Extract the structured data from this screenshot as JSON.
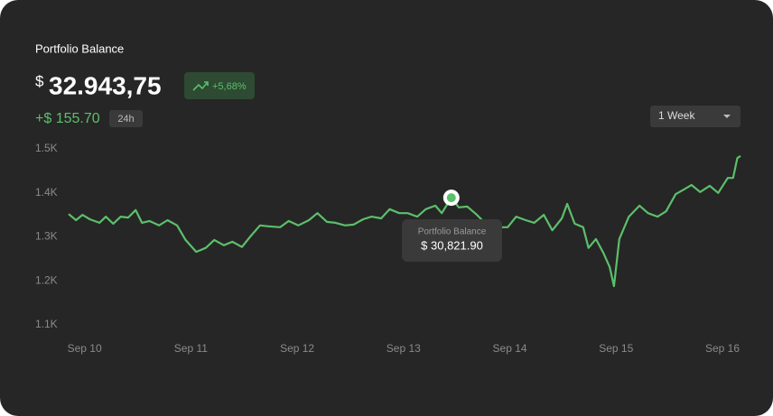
{
  "header": {
    "title": "Portfolio Balance",
    "currency": "$",
    "balance": "32.943,75",
    "change_pct": "+5,68%",
    "change_abs": "+$ 155.70",
    "period_badge": "24h",
    "range_select": "1 Week"
  },
  "chart_data": {
    "type": "line",
    "x": [
      -0.15,
      -0.08,
      -0.02,
      0.05,
      0.14,
      0.2,
      0.27,
      0.34,
      0.41,
      0.48,
      0.54,
      0.61,
      0.7,
      0.78,
      0.87,
      0.95,
      1.05,
      1.14,
      1.22,
      1.31,
      1.39,
      1.48,
      1.56,
      1.65,
      1.73,
      1.84,
      1.92,
      2.01,
      2.11,
      2.19,
      2.28,
      2.36,
      2.45,
      2.53,
      2.62,
      2.7,
      2.79,
      2.87,
      2.96,
      3.04,
      3.13,
      3.21,
      3.3,
      3.36,
      3.45,
      3.52,
      3.6,
      3.69,
      3.79,
      3.89,
      3.98,
      4.06,
      4.15,
      4.23,
      4.32,
      4.4,
      4.49,
      4.54,
      4.61,
      4.69,
      4.74,
      4.81,
      4.88,
      4.94,
      4.98,
      5.03,
      5.12,
      5.22,
      5.3,
      5.39,
      5.47,
      5.56,
      5.64,
      5.71,
      5.79,
      5.88,
      5.96,
      6.05,
      6.1,
      6.14,
      6.17
    ],
    "series": [
      {
        "name": "Portfolio Balance",
        "color": "#5cbf6b",
        "values": [
          1352,
          1338,
          1350,
          1340,
          1332,
          1346,
          1330,
          1346,
          1344,
          1361,
          1332,
          1336,
          1326,
          1338,
          1326,
          1293,
          1266,
          1275,
          1293,
          1281,
          1289,
          1277,
          1301,
          1326,
          1324,
          1322,
          1336,
          1326,
          1338,
          1354,
          1334,
          1332,
          1326,
          1328,
          1340,
          1346,
          1342,
          1363,
          1354,
          1354,
          1346,
          1363,
          1371,
          1354,
          1389,
          1367,
          1369,
          1350,
          1326,
          1322,
          1322,
          1346,
          1338,
          1332,
          1350,
          1315,
          1342,
          1375,
          1330,
          1322,
          1275,
          1295,
          1264,
          1231,
          1188,
          1295,
          1346,
          1371,
          1354,
          1346,
          1358,
          1397,
          1408,
          1418,
          1402,
          1416,
          1400,
          1434,
          1434,
          1479,
          1484
        ]
      }
    ],
    "xlim": [
      -0.15,
      6.17
    ],
    "xticks": [
      {
        "value": 0,
        "label": "Sep 10"
      },
      {
        "value": 1,
        "label": "Sep 11"
      },
      {
        "value": 2,
        "label": "Sep 12"
      },
      {
        "value": 3,
        "label": "Sep 13"
      },
      {
        "value": 4,
        "label": "Sep 14"
      },
      {
        "value": 5,
        "label": "Sep 15"
      },
      {
        "value": 6,
        "label": "Sep 16"
      }
    ],
    "ylim": [
      1100,
      1500
    ],
    "yticks": [
      {
        "value": 1100,
        "label": "1.1K"
      },
      {
        "value": 1200,
        "label": "1.2K"
      },
      {
        "value": 1300,
        "label": "1.3K"
      },
      {
        "value": 1400,
        "label": "1.4K"
      },
      {
        "value": 1500,
        "label": "1.5K"
      }
    ],
    "grid": false,
    "highlight_index": 44,
    "tooltip": {
      "title": "Portfolio Balance",
      "value": "$ 30,821.90"
    }
  }
}
